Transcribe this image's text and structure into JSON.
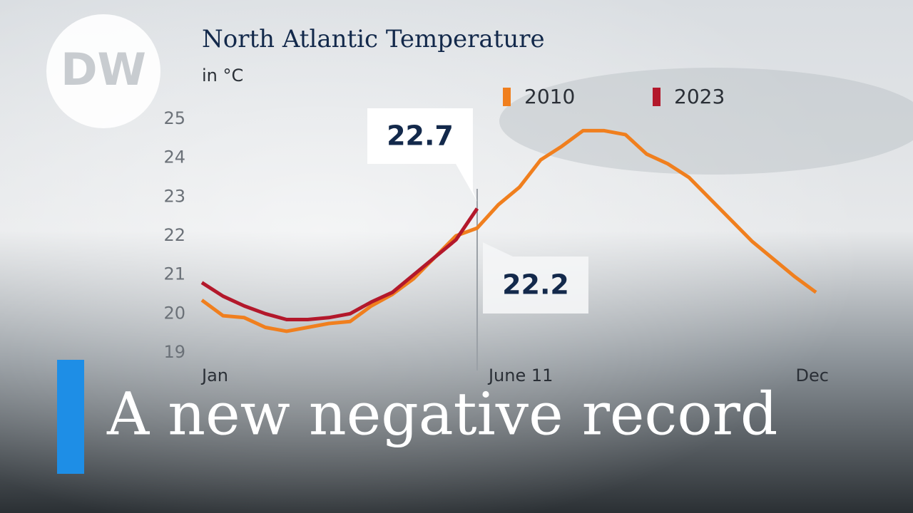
{
  "logo": "DW",
  "headline": "A new negative record",
  "chart_data": {
    "type": "line",
    "title": "North Atlantic Temperature",
    "subtitle": "in °C",
    "categories": [
      "Jan",
      null,
      null,
      null,
      null,
      null,
      null,
      null,
      null,
      null,
      null,
      null,
      null,
      "June 11",
      null,
      null,
      null,
      null,
      null,
      null,
      null,
      null,
      null,
      null,
      null,
      null,
      null,
      null,
      null,
      "Dec"
    ],
    "series": [
      {
        "name": "2010",
        "color": "#f07f1e",
        "values": [
          20.35,
          19.95,
          19.9,
          19.65,
          19.55,
          19.65,
          19.75,
          19.8,
          20.2,
          20.5,
          20.9,
          21.45,
          22.0,
          22.2,
          22.8,
          23.25,
          23.95,
          24.3,
          24.7,
          24.7,
          24.6,
          24.1,
          23.85,
          23.5,
          22.95,
          22.4,
          21.85,
          21.4,
          20.95,
          20.55
        ]
      },
      {
        "name": "2023",
        "color": "#b3182b",
        "values": [
          20.8,
          20.45,
          20.2,
          20.0,
          19.85,
          19.85,
          19.9,
          20.0,
          20.3,
          20.55,
          21.0,
          21.45,
          21.9,
          22.7,
          null,
          null,
          null,
          null,
          null,
          null,
          null,
          null,
          null,
          null,
          null,
          null,
          null,
          null,
          null,
          null
        ]
      }
    ],
    "ylim": [
      19,
      25
    ],
    "yticks": [
      19,
      20,
      21,
      22,
      23,
      24,
      25
    ],
    "grid": false,
    "legend": "top"
  }
}
